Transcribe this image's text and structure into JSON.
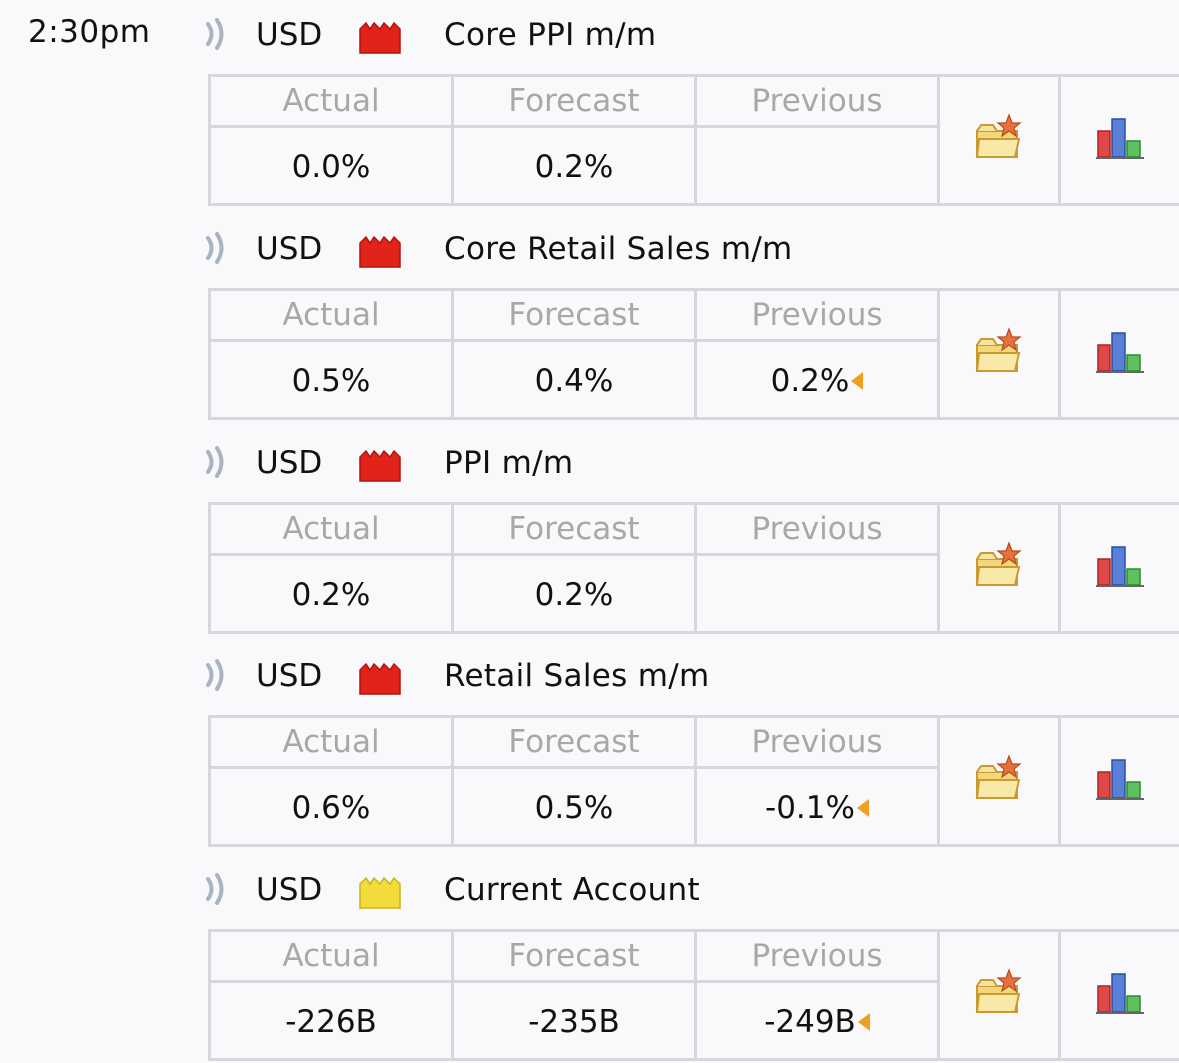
{
  "time": "2:30pm",
  "labels": {
    "actual": "Actual",
    "forecast": "Forecast",
    "previous": "Previous"
  },
  "colors": {
    "better": "#3f9a2b",
    "worse": "#b0231f",
    "neutral": "#111111",
    "high_impact": "#e2231a",
    "medium_impact": "#f2dc3a"
  },
  "icons": {
    "sound": "sound-wave-icon",
    "impact": "impact-folder-icon",
    "detail": "folder-star-icon",
    "chart": "bar-chart-icon",
    "revised": "revised-arrow-icon"
  },
  "events": [
    {
      "currency": "USD",
      "impact": "high",
      "title": "Core PPI m/m",
      "actual": "0.0%",
      "actual_color": "worse",
      "forecast": "0.2%",
      "previous": "",
      "previous_color": "neutral",
      "revised": false
    },
    {
      "currency": "USD",
      "impact": "high",
      "title": "Core Retail Sales m/m",
      "actual": "0.5%",
      "actual_color": "better",
      "forecast": "0.4%",
      "previous": "0.2%",
      "previous_color": "worse",
      "revised": true
    },
    {
      "currency": "USD",
      "impact": "high",
      "title": "PPI m/m",
      "actual": "0.2%",
      "actual_color": "neutral",
      "forecast": "0.2%",
      "previous": "",
      "previous_color": "neutral",
      "revised": false
    },
    {
      "currency": "USD",
      "impact": "high",
      "title": "Retail Sales m/m",
      "actual": "0.6%",
      "actual_color": "better",
      "forecast": "0.5%",
      "previous": "-0.1%",
      "previous_color": "worse",
      "revised": true
    },
    {
      "currency": "USD",
      "impact": "medium",
      "title": "Current Account",
      "actual": "-226B",
      "actual_color": "better",
      "forecast": "-235B",
      "previous": "-249B",
      "previous_color": "neutral",
      "revised": true
    }
  ]
}
